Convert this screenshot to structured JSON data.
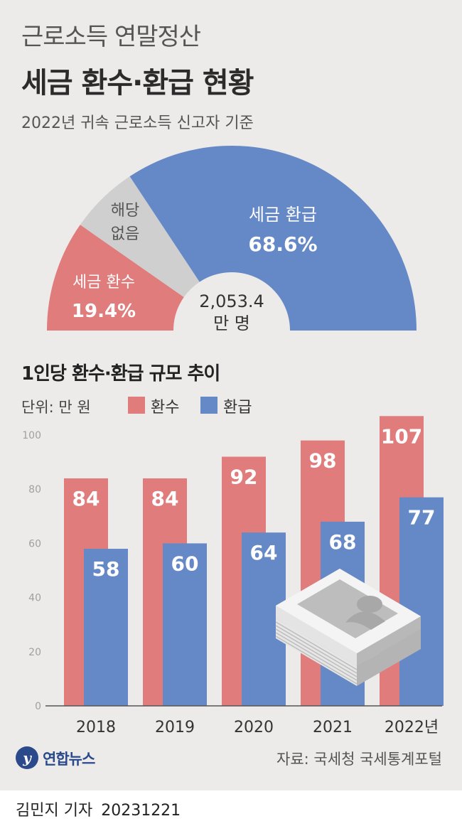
{
  "header": {
    "title_line1": "근로소득 연말정산",
    "title_line2": "세금 환수·환급 현황",
    "subtitle": "2022년 귀속 근로소득 신고자 기준"
  },
  "colors": {
    "background": "#ecebe9",
    "refund_blue": "#6588c7",
    "collect_red": "#e07c7b",
    "none_gray": "#cfcfcf"
  },
  "pie": {
    "center_value": "2,053.4",
    "center_unit": "만 명",
    "segments": [
      {
        "name_line1": "세금 환수",
        "name_line2": "",
        "value_text": "19.4%",
        "value": 19.4,
        "color": "#e07c7b"
      },
      {
        "name_line1": "해당",
        "name_line2": "없음",
        "value_text": "",
        "value": 12.0,
        "color": "#cfcfcf"
      },
      {
        "name_line1": "세금 환급",
        "name_line2": "",
        "value_text": "68.6%",
        "value": 68.6,
        "color": "#6588c7"
      }
    ]
  },
  "chart_data": {
    "type": "bar",
    "title": "1인당 환수·환급 규모 추이",
    "unit_label": "단위: 만 원",
    "categories": [
      "2018",
      "2019",
      "2020",
      "2021",
      "2022년"
    ],
    "series": [
      {
        "name": "환수",
        "values": [
          84,
          84,
          92,
          98,
          107
        ],
        "color": "#e07c7b"
      },
      {
        "name": "환급",
        "values": [
          58,
          60,
          64,
          68,
          77
        ],
        "color": "#6588c7"
      }
    ],
    "y_ticks": [
      0,
      20,
      40,
      60,
      80,
      100
    ],
    "ylim": [
      0,
      100
    ],
    "grid": false,
    "legend_position": "top"
  },
  "footer": {
    "logo_text": "연합뉴스",
    "source": "자료: 국세청 국세통계포털",
    "byline_name": "김민지 기자",
    "byline_date": "20231221"
  }
}
